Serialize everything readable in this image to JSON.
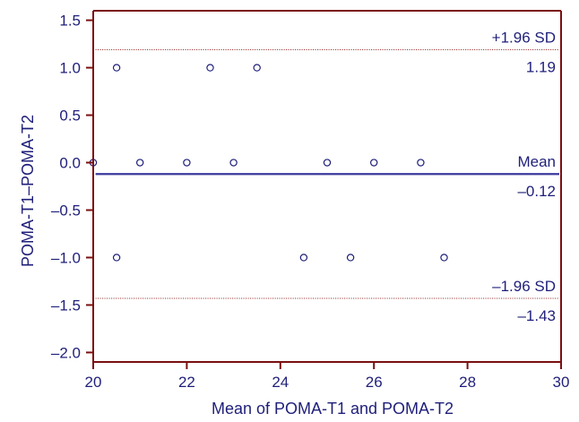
{
  "chart_data": {
    "type": "scatter",
    "title": "",
    "xlabel": "Mean of POMA-T1 and POMA-T2",
    "ylabel": "POMA-T1–POMA-T2",
    "xlim": [
      20,
      30
    ],
    "ylim": [
      -2.1,
      1.6
    ],
    "x_ticks": [
      20,
      22,
      24,
      26,
      28,
      30
    ],
    "x_tick_labels": [
      "20",
      "22",
      "24",
      "26",
      "28",
      "30"
    ],
    "y_ticks": [
      1.5,
      1.0,
      0.5,
      0.0,
      -0.5,
      -1.0,
      -1.5,
      -2.0
    ],
    "y_tick_labels": [
      "1.5",
      "1.0",
      "0.5",
      "0.0",
      "–0.5",
      "–1.0",
      "–1.5",
      "–2.0"
    ],
    "grid": false,
    "points": [
      {
        "x": 20.0,
        "y": 0.0
      },
      {
        "x": 20.5,
        "y": 1.0
      },
      {
        "x": 20.5,
        "y": -1.0
      },
      {
        "x": 21.0,
        "y": 0.0
      },
      {
        "x": 22.0,
        "y": 0.0
      },
      {
        "x": 22.5,
        "y": 1.0
      },
      {
        "x": 23.0,
        "y": 0.0
      },
      {
        "x": 23.5,
        "y": 1.0
      },
      {
        "x": 24.5,
        "y": -1.0
      },
      {
        "x": 25.0,
        "y": 0.0
      },
      {
        "x": 25.5,
        "y": -1.0
      },
      {
        "x": 26.0,
        "y": 0.0
      },
      {
        "x": 27.0,
        "y": 0.0
      },
      {
        "x": 27.5,
        "y": -1.0
      }
    ],
    "reference_lines": [
      {
        "name": "+1.96 SD",
        "value": 1.19,
        "value_label": "1.19",
        "style": "dotted",
        "color": "#8b1a1a"
      },
      {
        "name": "Mean",
        "value": -0.12,
        "value_label": "–0.12",
        "style": "solid",
        "color": "#3a3a9e"
      },
      {
        "name": "–1.96 SD",
        "value": -1.43,
        "value_label": "–1.43",
        "style": "dotted",
        "color": "#8b1a1a"
      }
    ],
    "colors": {
      "axis": "#7a1010",
      "text": "#1f1f7a",
      "marker": "#1f1f7a"
    }
  }
}
